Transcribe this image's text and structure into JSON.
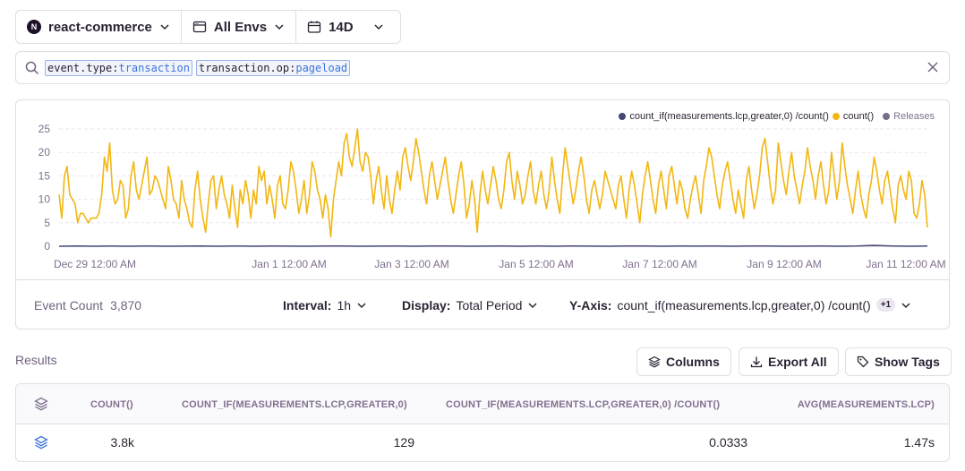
{
  "filters": {
    "project": {
      "label": "react-commerce",
      "logo_text": "N"
    },
    "environment": {
      "label": "All Envs"
    },
    "period": {
      "label": "14D"
    }
  },
  "search": {
    "tokens": [
      {
        "key": "event.type",
        "op": ":",
        "value": "transaction"
      },
      {
        "key": "transaction.op",
        "op": ":",
        "value": "pageload"
      }
    ]
  },
  "chart_legend": {
    "series1": "count_if(measurements.lcp,greater,0) /count()",
    "series2": "count()",
    "releases": "Releases",
    "colors": {
      "series1": "#444674",
      "series2": "#f2b712",
      "releases": "#7a6c8a"
    }
  },
  "chart_data": {
    "type": "line",
    "x_tick_labels": [
      "Dec 29 12:00 AM",
      "Jan 1 12:00 AM",
      "Jan 3 12:00 AM",
      "Jan 5 12:00 AM",
      "Jan 7 12:00 AM",
      "Jan 9 12:00 AM",
      "Jan 11 12:00 AM"
    ],
    "y_ticks": [
      "0",
      "5",
      "10",
      "15",
      "20",
      "25"
    ],
    "ylim": [
      0,
      25
    ],
    "grid": true,
    "legend_position": "top-right",
    "series": [
      {
        "name": "count()",
        "color": "#f2b712",
        "values": [
          11,
          6,
          15,
          17,
          11,
          10,
          9,
          5,
          7,
          7,
          6,
          5,
          6,
          6,
          6,
          7,
          11,
          19,
          16,
          22,
          12,
          9,
          10,
          14,
          13,
          6,
          8,
          15,
          18,
          12,
          10,
          13,
          16,
          19,
          11,
          12,
          15,
          14,
          12,
          10,
          8,
          17,
          14,
          10,
          9,
          6,
          14,
          10,
          8,
          5,
          4,
          12,
          16,
          10,
          6,
          3,
          9,
          14,
          15,
          8,
          12,
          15,
          11,
          9,
          6,
          13,
          8,
          4,
          12,
          9,
          14,
          11,
          6,
          12,
          9,
          17,
          14,
          16,
          9,
          13,
          10,
          6,
          13,
          15,
          9,
          8,
          12,
          18,
          16,
          12,
          7,
          10,
          14,
          7,
          11,
          18,
          16,
          12,
          10,
          6,
          11,
          8,
          2,
          10,
          14,
          18,
          15,
          22,
          24,
          19,
          17,
          21,
          25,
          18,
          16,
          20,
          19,
          15,
          9,
          14,
          17,
          12,
          8,
          15,
          10,
          7,
          12,
          16,
          12,
          19,
          21,
          17,
          14,
          18,
          23,
          20,
          16,
          12,
          9,
          15,
          18,
          14,
          10,
          13,
          16,
          19,
          14,
          10,
          7,
          11,
          15,
          18,
          13,
          6,
          9,
          14,
          10,
          3,
          11,
          16,
          12,
          9,
          13,
          17,
          14,
          10,
          8,
          12,
          18,
          20,
          14,
          10,
          16,
          13,
          9,
          11,
          15,
          18,
          12,
          9,
          13,
          16,
          11,
          8,
          12,
          19,
          14,
          10,
          7,
          15,
          21,
          17,
          13,
          9,
          12,
          16,
          19,
          15,
          10,
          7,
          12,
          14,
          11,
          8,
          11,
          16,
          14,
          12,
          10,
          8,
          13,
          15,
          10,
          6,
          12,
          16,
          13,
          9,
          5,
          11,
          15,
          18,
          14,
          10,
          7,
          13,
          16,
          12,
          8,
          15,
          17,
          13,
          9,
          14,
          12,
          8,
          6,
          10,
          13,
          15,
          11,
          7,
          14,
          17,
          21,
          19,
          15,
          11,
          8,
          13,
          16,
          18,
          14,
          10,
          7,
          12,
          9,
          6,
          14,
          17,
          12,
          8,
          11,
          15,
          21,
          23,
          18,
          13,
          9,
          12,
          22,
          18,
          14,
          11,
          16,
          20,
          15,
          12,
          9,
          13,
          16,
          21,
          17,
          14,
          10,
          15,
          18,
          13,
          9,
          12,
          20,
          15,
          10,
          14,
          22,
          17,
          13,
          10,
          7,
          12,
          16,
          11,
          8,
          6,
          11,
          14,
          19,
          16,
          12,
          9,
          14,
          16,
          12,
          8,
          5,
          13,
          15,
          12,
          10,
          16,
          14,
          7,
          6,
          9,
          14,
          11,
          4
        ],
        "note": "approximate hourly count values over 14 days"
      },
      {
        "name": "count_if(measurements.lcp,greater,0) /count()",
        "color": "#444674",
        "values": [
          0,
          0.05,
          0,
          0.03,
          0,
          0.04,
          0,
          0.02,
          0.05,
          0,
          0.03,
          0,
          0.04,
          0.02,
          0,
          0.05,
          0.03,
          0,
          0.02,
          0.04,
          0,
          0.03,
          0.05,
          0,
          0.02,
          0.04,
          0,
          0.03,
          0,
          0.05,
          0.02,
          0,
          0.04,
          0.03,
          0,
          0.05,
          0.02,
          0.04,
          0,
          0.03,
          0.05,
          0,
          0.02,
          0.04,
          0,
          0.03,
          0.2,
          0.05,
          0,
          0.03
        ]
      }
    ]
  },
  "chart_footer": {
    "event_count_label": "Event Count",
    "event_count_value": "3,870",
    "interval_label": "Interval:",
    "interval_value": "1h",
    "display_label": "Display:",
    "display_value": "Total Period",
    "yaxis_label": "Y-Axis:",
    "yaxis_value": "count_if(measurements.lcp,greater,0) /count()",
    "yaxis_badge": "+1"
  },
  "results": {
    "title": "Results",
    "columns_button": "Columns",
    "export_button": "Export All",
    "tags_button": "Show Tags",
    "headers": [
      "COUNT()",
      "COUNT_IF(MEASUREMENTS.LCP,GREATER,0)",
      "COUNT_IF(MEASUREMENTS.LCP,GREATER,0) /COUNT()",
      "AVG(MEASUREMENTS.LCP)"
    ],
    "rows": [
      {
        "count": "3.8k",
        "count_if": "129",
        "ratio": "0.0333",
        "avg_lcp": "1.47s"
      }
    ]
  }
}
